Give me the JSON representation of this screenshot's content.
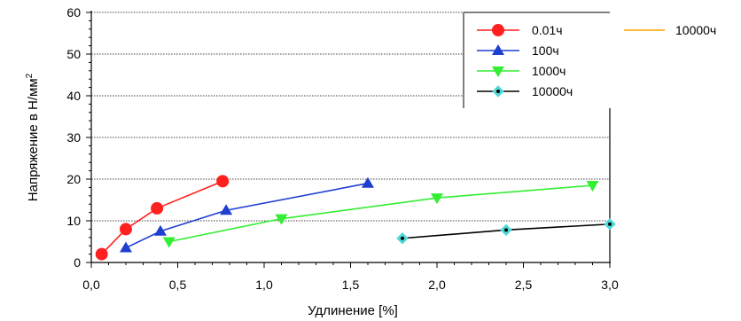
{
  "chart_data": {
    "type": "line",
    "xlabel": "Удлинение [%]",
    "ylabel": "Напряжение в Н/мм",
    "ylabel_sup": "2",
    "xlim": [
      0,
      3
    ],
    "ylim": [
      0,
      60
    ],
    "x_ticks": [
      "0,0",
      "0,5",
      "1,0",
      "1,5",
      "2,0",
      "2,5",
      "3,0"
    ],
    "y_ticks": [
      "0",
      "10",
      "20",
      "30",
      "40",
      "50",
      "60"
    ],
    "grid": "horizontal-dotted",
    "legend_placement": "top-right",
    "series": [
      {
        "name": "0.01ч",
        "color": "#ff2020",
        "marker": "circle",
        "x": [
          0.06,
          0.2,
          0.38,
          0.76
        ],
        "y": [
          2,
          8,
          13,
          19.5
        ]
      },
      {
        "name": "100ч",
        "color": "#1f3fd0",
        "marker": "triangle-up",
        "x": [
          0.2,
          0.4,
          0.78,
          1.6
        ],
        "y": [
          3.5,
          7.5,
          12.5,
          19
        ]
      },
      {
        "name": "1000ч",
        "color": "#33ee33",
        "marker": "triangle-down",
        "x": [
          0.45,
          1.1,
          2.0,
          2.9
        ],
        "y": [
          5,
          10.5,
          15.5,
          18.5
        ]
      },
      {
        "name": "10000ч",
        "color": "#000000",
        "marker": "diamond-dot",
        "marker_fill": "#4fd8d8",
        "x": [
          1.8,
          2.4,
          3.0
        ],
        "y": [
          5.8,
          7.8,
          9.2
        ]
      }
    ],
    "extra_legend": {
      "name": "10000ч",
      "color": "#ffa500"
    }
  }
}
